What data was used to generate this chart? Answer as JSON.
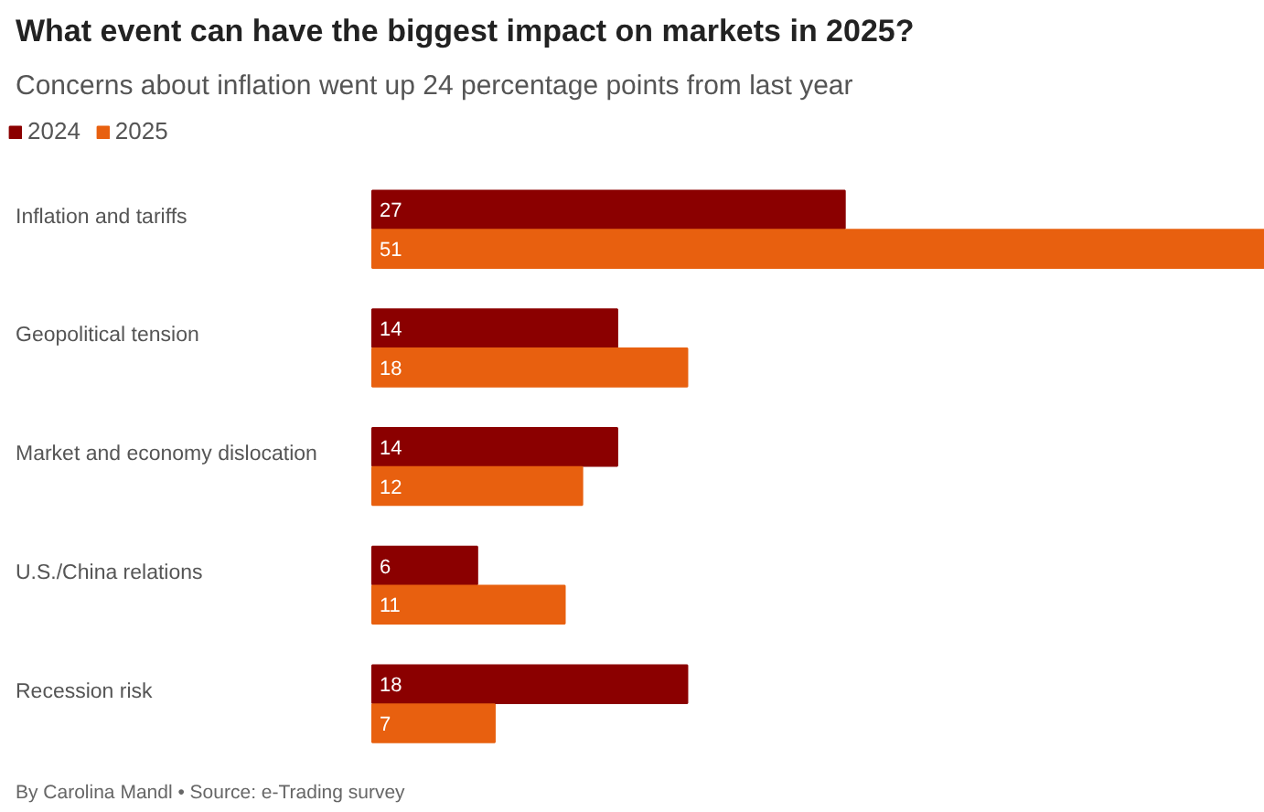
{
  "chart_data": {
    "type": "bar",
    "orientation": "horizontal",
    "title": "What event can have the biggest impact on markets in 2025?",
    "subtitle": "Concerns about inflation went up 24 percentage points from last year",
    "categories": [
      "Inflation and tariffs",
      "Geopolitical tension",
      "Market and economy dislocation",
      "U.S./China relations",
      "Recession risk"
    ],
    "series": [
      {
        "name": "2024",
        "color": "#8b0000",
        "values": [
          27,
          14,
          14,
          6,
          18
        ]
      },
      {
        "name": "2025",
        "color": "#e8600f",
        "values": [
          51,
          18,
          12,
          11,
          7
        ]
      }
    ],
    "data_labels": true,
    "legend": "top left",
    "grid": false,
    "annotations": [
      "By Carolina Mandl • Source: e-Trading survey"
    ]
  }
}
